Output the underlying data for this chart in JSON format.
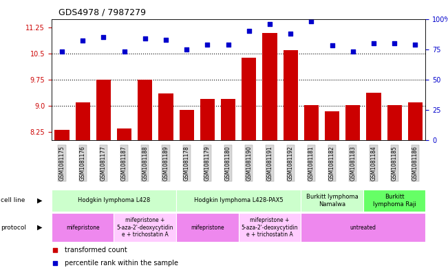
{
  "title": "GDS4978 / 7987279",
  "samples": [
    "GSM1081175",
    "GSM1081176",
    "GSM1081177",
    "GSM1081187",
    "GSM1081188",
    "GSM1081189",
    "GSM1081178",
    "GSM1081179",
    "GSM1081180",
    "GSM1081190",
    "GSM1081191",
    "GSM1081192",
    "GSM1081181",
    "GSM1081182",
    "GSM1081183",
    "GSM1081184",
    "GSM1081185",
    "GSM1081186"
  ],
  "bar_values": [
    8.3,
    9.1,
    9.75,
    8.35,
    9.75,
    9.35,
    8.88,
    9.2,
    9.2,
    10.38,
    11.1,
    10.6,
    9.02,
    8.83,
    9.02,
    9.38,
    9.02,
    9.1
  ],
  "dot_values": [
    73,
    82,
    85,
    73,
    84,
    83,
    75,
    79,
    79,
    90,
    96,
    88,
    98,
    78,
    73,
    80,
    80,
    79
  ],
  "ylim_left": [
    8.0,
    11.5
  ],
  "ylim_right": [
    0,
    100
  ],
  "yticks_left": [
    8.25,
    9.0,
    9.75,
    10.5,
    11.25
  ],
  "yticks_right": [
    0,
    25,
    50,
    75,
    100
  ],
  "hlines": [
    9.0,
    9.75,
    10.5
  ],
  "bar_color": "#cc0000",
  "dot_color": "#0000cc",
  "cell_line_groups": [
    {
      "label": "Hodgkin lymphoma L428",
      "start": 0,
      "end": 6,
      "color": "#ccffcc"
    },
    {
      "label": "Hodgkin lymphoma L428-PAX5",
      "start": 6,
      "end": 12,
      "color": "#ccffcc"
    },
    {
      "label": "Burkitt lymphoma\nNamalwa",
      "start": 12,
      "end": 15,
      "color": "#ccffcc"
    },
    {
      "label": "Burkitt\nlymphoma Raji",
      "start": 15,
      "end": 18,
      "color": "#66ff66"
    }
  ],
  "protocol_groups": [
    {
      "label": "mifepristone",
      "start": 0,
      "end": 3,
      "color": "#ee88ee"
    },
    {
      "label": "mifepristone +\n5-aza-2'-deoxycytidin\ne + trichostatin A",
      "start": 3,
      "end": 6,
      "color": "#ffccff"
    },
    {
      "label": "mifepristone",
      "start": 6,
      "end": 9,
      "color": "#ee88ee"
    },
    {
      "label": "mifepristone +\n5-aza-2'-deoxycytidin\ne + trichostatin A",
      "start": 9,
      "end": 12,
      "color": "#ffccff"
    },
    {
      "label": "untreated",
      "start": 12,
      "end": 18,
      "color": "#ee88ee"
    }
  ]
}
